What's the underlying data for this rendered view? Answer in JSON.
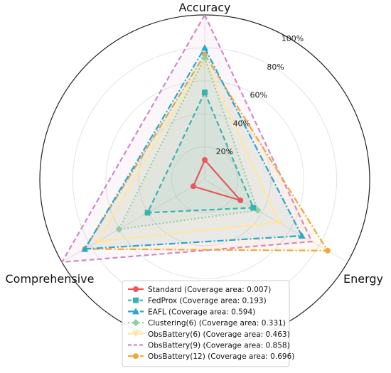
{
  "chart_data": {
    "type": "radar",
    "axes": [
      "Accuracy",
      "Energy",
      "Comprehensive"
    ],
    "radial_ticks": [
      "20%",
      "40%",
      "60%",
      "80%",
      "100%"
    ],
    "rlim": [
      0,
      100
    ],
    "grid": true,
    "legend_position": "bottom-center",
    "series": [
      {
        "name": "Standard (Coverage area: 0.007)",
        "values": [
          12,
          25,
          8
        ],
        "color": "#e8575a",
        "line": "solid",
        "marker": "circle",
        "fill": false
      },
      {
        "name": "FedProx (Coverage area: 0.193)",
        "values": [
          53,
          34,
          40
        ],
        "color": "#3ab3b0",
        "line": "dashed",
        "marker": "square",
        "fill": true
      },
      {
        "name": "EAFL (Coverage area: 0.594)",
        "values": [
          80,
          68,
          84
        ],
        "color": "#2aa7c9",
        "line": "dashdot",
        "marker": "triangle",
        "fill": true
      },
      {
        "name": "Clustering(6) (Coverage area: 0.331)",
        "values": [
          74,
          37,
          60
        ],
        "color": "#8fcfa6",
        "line": "dotted",
        "marker": "diamond",
        "fill": true
      },
      {
        "name": "ObsBattery(6) (Coverage area: 0.463)",
        "values": [
          73,
          52,
          75
        ],
        "color": "#fde7a0",
        "line": "solid",
        "marker": "triangle-down",
        "fill": true
      },
      {
        "name": "ObsBattery(9) (Coverage area: 0.858)",
        "values": [
          100,
          75,
          100
        ],
        "color": "#cf8ac5",
        "line": "dashed",
        "marker": "none",
        "fill": true
      },
      {
        "name": "ObsBattery(12) (Coverage area: 0.696)",
        "values": [
          76,
          86,
          84
        ],
        "color": "#f0a73a",
        "line": "dashdot",
        "marker": "circle",
        "fill": true
      }
    ]
  }
}
